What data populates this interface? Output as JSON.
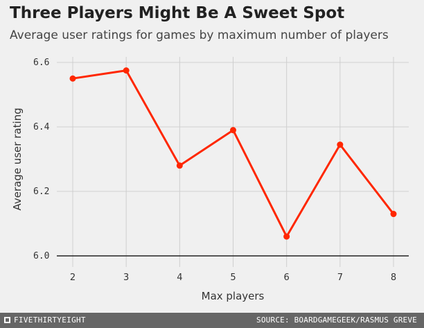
{
  "header": {
    "title": "Three Players Might Be A Sweet Spot",
    "subtitle": "Average user ratings for games by maximum number of players"
  },
  "footer": {
    "brand": "FIVETHIRTYEIGHT",
    "source": "SOURCE: BOARDGAMEGEEK/RASMUS GREVE"
  },
  "colors": {
    "line": "#ff2700",
    "grid": "#cfcfcf",
    "background": "#f0f0f0",
    "footer": "#666666"
  },
  "chart_data": {
    "type": "line",
    "title": "Three Players Might Be A Sweet Spot",
    "subtitle": "Average user ratings for games by maximum number of players",
    "xlabel": "Max players",
    "ylabel": "Average user rating",
    "x": [
      2,
      3,
      4,
      5,
      6,
      7,
      8
    ],
    "y": [
      6.55,
      6.575,
      6.28,
      6.39,
      6.06,
      6.345,
      6.13
    ],
    "xticks": [
      "2",
      "3",
      "4",
      "5",
      "6",
      "7",
      "8"
    ],
    "yticks": [
      6.0,
      6.2,
      6.4,
      6.6
    ],
    "ytick_labels": [
      "6.0",
      "6.2",
      "6.4",
      "6.6"
    ],
    "xlim": [
      2,
      8
    ],
    "ylim": [
      6.0,
      6.6
    ],
    "grid": true,
    "legend": "none"
  }
}
